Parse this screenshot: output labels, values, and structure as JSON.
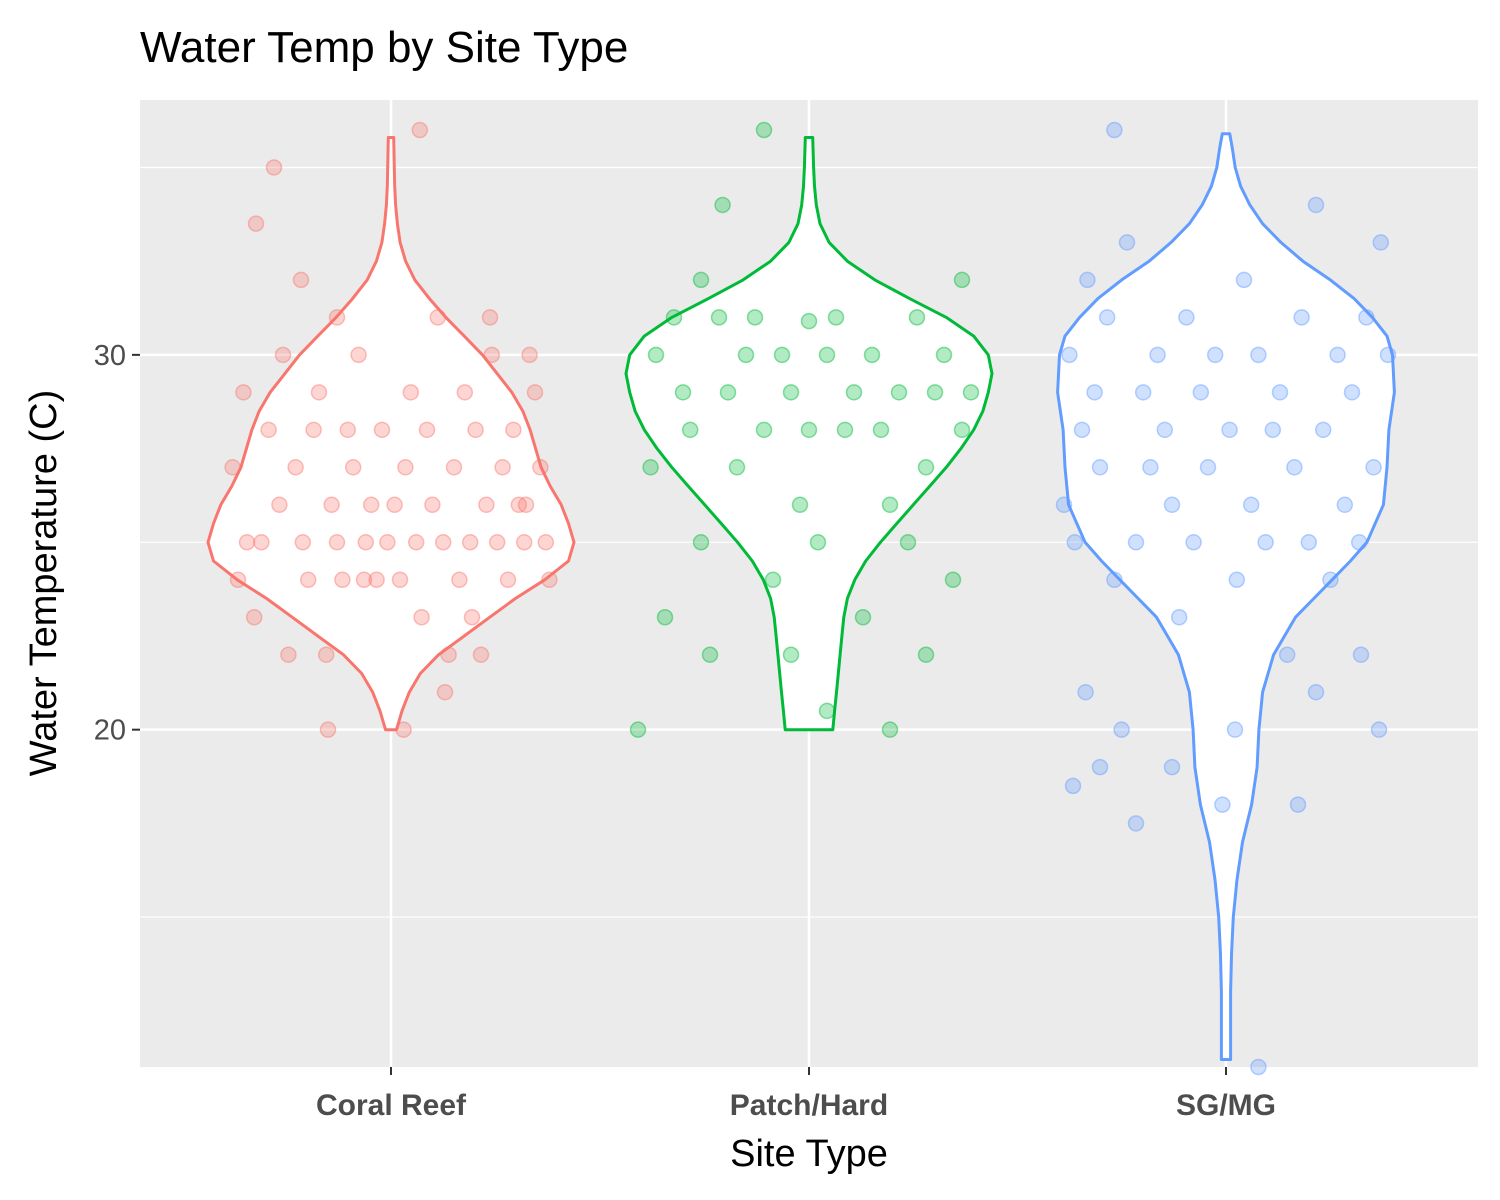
{
  "chart_data": {
    "type": "violin",
    "title": "Water Temp by Site Type",
    "xlabel": "Site Type",
    "ylabel": "Water Temperature (C)",
    "categories": [
      "Coral Reef",
      "Patch/Hard",
      "SG/MG"
    ],
    "y_ticks": [
      20,
      30
    ],
    "ylim": [
      11.0,
      36.8
    ],
    "grid": true,
    "legend": "none",
    "colors": {
      "Coral Reef": "#F8766D",
      "Patch/Hard": "#00BA38",
      "SG/MG": "#619CFF",
      "panel_bg": "#EBEBEB",
      "grid": "#FFFFFF"
    },
    "series": [
      {
        "category": "Coral Reef",
        "violin": {
          "y_range": [
            20,
            35.8
          ],
          "density": [
            [
              20.0,
              0.03
            ],
            [
              20.5,
              0.06
            ],
            [
              21.0,
              0.1
            ],
            [
              21.5,
              0.16
            ],
            [
              22.0,
              0.26
            ],
            [
              22.5,
              0.4
            ],
            [
              23.0,
              0.54
            ],
            [
              23.5,
              0.68
            ],
            [
              24.0,
              0.84
            ],
            [
              24.5,
              0.97
            ],
            [
              25.0,
              1.0
            ],
            [
              25.5,
              0.97
            ],
            [
              26.0,
              0.93
            ],
            [
              26.5,
              0.87
            ],
            [
              27.0,
              0.82
            ],
            [
              27.5,
              0.79
            ],
            [
              28.0,
              0.76
            ],
            [
              28.5,
              0.72
            ],
            [
              29.0,
              0.66
            ],
            [
              29.5,
              0.58
            ],
            [
              30.0,
              0.5
            ],
            [
              30.5,
              0.4
            ],
            [
              31.0,
              0.3
            ],
            [
              31.5,
              0.21
            ],
            [
              32.0,
              0.13
            ],
            [
              32.5,
              0.08
            ],
            [
              33.0,
              0.05
            ],
            [
              33.5,
              0.035
            ],
            [
              34.0,
              0.025
            ],
            [
              34.5,
              0.02
            ],
            [
              35.0,
              0.018
            ],
            [
              35.8,
              0.015
            ]
          ]
        },
        "points": [
          [
            -0.88,
            27
          ],
          [
            -0.85,
            24
          ],
          [
            -0.82,
            29
          ],
          [
            -0.76,
            23
          ],
          [
            -0.72,
            25
          ],
          [
            -0.68,
            28
          ],
          [
            -0.62,
            26
          ],
          [
            -0.6,
            30
          ],
          [
            -0.57,
            22
          ],
          [
            -0.53,
            27
          ],
          [
            -0.49,
            25
          ],
          [
            -0.46,
            24
          ],
          [
            -0.43,
            28
          ],
          [
            -0.4,
            29
          ],
          [
            -0.36,
            22
          ],
          [
            -0.33,
            26
          ],
          [
            -0.3,
            25
          ],
          [
            -0.27,
            24
          ],
          [
            -0.24,
            28
          ],
          [
            -0.21,
            27
          ],
          [
            -0.18,
            30
          ],
          [
            -0.14,
            25
          ],
          [
            -0.11,
            26
          ],
          [
            -0.08,
            24
          ],
          [
            -0.05,
            28
          ],
          [
            -0.02,
            25
          ],
          [
            0.02,
            26
          ],
          [
            0.05,
            24
          ],
          [
            0.08,
            27
          ],
          [
            0.11,
            29
          ],
          [
            0.14,
            25
          ],
          [
            0.17,
            23
          ],
          [
            0.2,
            28
          ],
          [
            0.23,
            26
          ],
          [
            0.26,
            31
          ],
          [
            0.29,
            25
          ],
          [
            0.32,
            22
          ],
          [
            0.35,
            27
          ],
          [
            0.38,
            24
          ],
          [
            0.41,
            29
          ],
          [
            0.44,
            25
          ],
          [
            0.47,
            28
          ],
          [
            0.5,
            22
          ],
          [
            0.53,
            26
          ],
          [
            0.56,
            30
          ],
          [
            0.59,
            25
          ],
          [
            0.62,
            27
          ],
          [
            0.65,
            24
          ],
          [
            0.68,
            28
          ],
          [
            0.71,
            26
          ],
          [
            0.74,
            25
          ],
          [
            0.77,
            30
          ],
          [
            0.8,
            29
          ],
          [
            0.83,
            27
          ],
          [
            0.86,
            25
          ],
          [
            0.88,
            24
          ],
          [
            -0.35,
            20
          ],
          [
            0.07,
            20
          ],
          [
            0.16,
            36
          ],
          [
            -0.75,
            33.5
          ],
          [
            -0.65,
            35
          ],
          [
            -0.5,
            32
          ],
          [
            0.3,
            21
          ],
          [
            -0.3,
            31
          ],
          [
            0.55,
            31
          ],
          [
            -0.8,
            25
          ],
          [
            0.75,
            26
          ],
          [
            -0.15,
            24
          ],
          [
            0.45,
            23
          ]
        ]
      },
      {
        "category": "Patch/Hard",
        "violin": {
          "y_range": [
            20,
            35.8
          ],
          "density": [
            [
              20.0,
              0.13
            ],
            [
              20.5,
              0.14
            ],
            [
              21.0,
              0.15
            ],
            [
              21.5,
              0.16
            ],
            [
              22.0,
              0.17
            ],
            [
              22.5,
              0.18
            ],
            [
              23.0,
              0.19
            ],
            [
              23.5,
              0.21
            ],
            [
              24.0,
              0.25
            ],
            [
              24.5,
              0.31
            ],
            [
              25.0,
              0.39
            ],
            [
              25.5,
              0.48
            ],
            [
              26.0,
              0.57
            ],
            [
              26.5,
              0.66
            ],
            [
              27.0,
              0.75
            ],
            [
              27.5,
              0.83
            ],
            [
              28.0,
              0.9
            ],
            [
              28.5,
              0.95
            ],
            [
              29.0,
              0.98
            ],
            [
              29.5,
              1.0
            ],
            [
              30.0,
              0.98
            ],
            [
              30.5,
              0.9
            ],
            [
              31.0,
              0.75
            ],
            [
              31.5,
              0.55
            ],
            [
              32.0,
              0.36
            ],
            [
              32.5,
              0.21
            ],
            [
              33.0,
              0.11
            ],
            [
              33.5,
              0.06
            ],
            [
              34.0,
              0.04
            ],
            [
              34.5,
              0.03
            ],
            [
              35.0,
              0.025
            ],
            [
              35.8,
              0.02
            ]
          ]
        },
        "points": [
          [
            -0.88,
            27
          ],
          [
            -0.85,
            30
          ],
          [
            -0.8,
            23
          ],
          [
            -0.75,
            31
          ],
          [
            -0.7,
            29
          ],
          [
            -0.66,
            28
          ],
          [
            -0.6,
            25
          ],
          [
            -0.55,
            22
          ],
          [
            -0.5,
            31
          ],
          [
            -0.45,
            29
          ],
          [
            -0.4,
            27
          ],
          [
            -0.35,
            30
          ],
          [
            -0.3,
            31
          ],
          [
            -0.25,
            28
          ],
          [
            -0.2,
            24
          ],
          [
            -0.15,
            30
          ],
          [
            -0.1,
            29
          ],
          [
            -0.05,
            26
          ],
          [
            0.0,
            28
          ],
          [
            0.05,
            25
          ],
          [
            0.1,
            30
          ],
          [
            0.15,
            31
          ],
          [
            0.2,
            28
          ],
          [
            0.25,
            29
          ],
          [
            0.3,
            23
          ],
          [
            0.35,
            30
          ],
          [
            0.4,
            28
          ],
          [
            0.45,
            26
          ],
          [
            0.5,
            29
          ],
          [
            0.55,
            25
          ],
          [
            0.6,
            31
          ],
          [
            0.65,
            27
          ],
          [
            0.7,
            29
          ],
          [
            0.75,
            30
          ],
          [
            0.8,
            24
          ],
          [
            0.85,
            28
          ],
          [
            -0.6,
            32
          ],
          [
            0.9,
            29
          ],
          [
            -0.1,
            22
          ],
          [
            -0.25,
            36
          ],
          [
            -0.95,
            20
          ],
          [
            0.45,
            20
          ],
          [
            0.65,
            22
          ],
          [
            -0.48,
            34
          ],
          [
            0.85,
            32
          ],
          [
            0.0,
            30.9
          ],
          [
            0.1,
            20.5
          ]
        ]
      },
      {
        "category": "SG/MG",
        "violin": {
          "y_range": [
            11.2,
            35.9
          ],
          "density": [
            [
              11.2,
              0.025
            ],
            [
              12.0,
              0.025
            ],
            [
              13.0,
              0.025
            ],
            [
              14.0,
              0.03
            ],
            [
              15.0,
              0.04
            ],
            [
              16.0,
              0.06
            ],
            [
              17.0,
              0.09
            ],
            [
              18.0,
              0.14
            ],
            [
              19.0,
              0.17
            ],
            [
              20.0,
              0.18
            ],
            [
              21.0,
              0.2
            ],
            [
              22.0,
              0.26
            ],
            [
              23.0,
              0.38
            ],
            [
              23.5,
              0.48
            ],
            [
              24.0,
              0.58
            ],
            [
              24.5,
              0.68
            ],
            [
              25.0,
              0.77
            ],
            [
              26.0,
              0.86
            ],
            [
              27.0,
              0.88
            ],
            [
              28.0,
              0.89
            ],
            [
              29.0,
              0.92
            ],
            [
              30.0,
              0.91
            ],
            [
              30.5,
              0.88
            ],
            [
              31.0,
              0.8
            ],
            [
              31.5,
              0.7
            ],
            [
              32.0,
              0.57
            ],
            [
              32.5,
              0.42
            ],
            [
              33.0,
              0.3
            ],
            [
              33.5,
              0.2
            ],
            [
              34.0,
              0.13
            ],
            [
              34.5,
              0.08
            ],
            [
              35.0,
              0.05
            ],
            [
              35.5,
              0.035
            ],
            [
              35.9,
              0.02
            ]
          ]
        },
        "points": [
          [
            -0.9,
            26
          ],
          [
            -0.87,
            30
          ],
          [
            -0.84,
            25
          ],
          [
            -0.8,
            28
          ],
          [
            -0.77,
            32
          ],
          [
            -0.73,
            29
          ],
          [
            -0.7,
            27
          ],
          [
            -0.66,
            31
          ],
          [
            -0.62,
            24
          ],
          [
            -0.58,
            20
          ],
          [
            -0.55,
            33
          ],
          [
            -0.5,
            25
          ],
          [
            -0.46,
            29
          ],
          [
            -0.42,
            27
          ],
          [
            -0.38,
            30
          ],
          [
            -0.34,
            28
          ],
          [
            -0.3,
            26
          ],
          [
            -0.26,
            23
          ],
          [
            -0.22,
            31
          ],
          [
            -0.18,
            25
          ],
          [
            -0.14,
            29
          ],
          [
            -0.1,
            27
          ],
          [
            -0.06,
            30
          ],
          [
            -0.02,
            18
          ],
          [
            0.02,
            28
          ],
          [
            0.06,
            24
          ],
          [
            0.1,
            32
          ],
          [
            0.14,
            26
          ],
          [
            0.18,
            30
          ],
          [
            0.22,
            25
          ],
          [
            0.26,
            28
          ],
          [
            0.3,
            29
          ],
          [
            0.34,
            22
          ],
          [
            0.38,
            27
          ],
          [
            0.42,
            31
          ],
          [
            0.46,
            25
          ],
          [
            0.5,
            21
          ],
          [
            0.54,
            28
          ],
          [
            0.58,
            24
          ],
          [
            0.62,
            30
          ],
          [
            0.66,
            26
          ],
          [
            0.7,
            29
          ],
          [
            0.74,
            25
          ],
          [
            0.78,
            31
          ],
          [
            0.82,
            27
          ],
          [
            0.86,
            33
          ],
          [
            0.9,
            30
          ],
          [
            -0.78,
            21
          ],
          [
            -0.7,
            19
          ],
          [
            -0.5,
            17.5
          ],
          [
            0.18,
            11
          ],
          [
            -0.3,
            19
          ],
          [
            0.4,
            18
          ],
          [
            0.85,
            20
          ],
          [
            -0.62,
            36
          ],
          [
            0.5,
            34
          ],
          [
            0.05,
            20
          ],
          [
            -0.85,
            18.5
          ],
          [
            0.75,
            22
          ]
        ]
      }
    ]
  }
}
